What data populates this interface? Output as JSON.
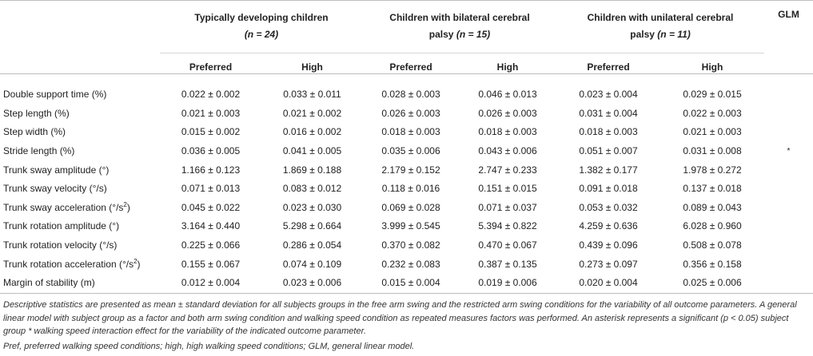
{
  "groups": {
    "td": {
      "name": "Typically developing children",
      "n": "(n = 24)"
    },
    "bcp": {
      "name_line1": "Children with bilateral cerebral",
      "name_line2": "palsy",
      "n": "(n = 15)"
    },
    "ucp": {
      "name_line1": "Children with unilateral cerebral",
      "name_line2": "palsy",
      "n": "(n = 11)"
    },
    "glm": "GLM"
  },
  "subheaders": {
    "preferred": "Preferred",
    "high": "High"
  },
  "rows": [
    {
      "label": "Double support time (%)",
      "unit_sup": "",
      "values": [
        "0.022 ± 0.002",
        "0.033 ± 0.011",
        "0.028 ± 0.003",
        "0.046 ± 0.013",
        "0.023 ± 0.004",
        "0.029 ± 0.015"
      ],
      "glm": ""
    },
    {
      "label": "Step length (%)",
      "unit_sup": "",
      "values": [
        "0.021 ± 0.003",
        "0.021 ± 0.002",
        "0.026 ± 0.003",
        "0.026 ± 0.003",
        "0.031 ± 0.004",
        "0.022 ± 0.003"
      ],
      "glm": ""
    },
    {
      "label": "Step width (%)",
      "unit_sup": "",
      "values": [
        "0.015 ± 0.002",
        "0.016 ± 0.002",
        "0.018 ± 0.003",
        "0.018 ± 0.003",
        "0.018 ± 0.003",
        "0.021 ± 0.003"
      ],
      "glm": ""
    },
    {
      "label": "Stride length (%)",
      "unit_sup": "",
      "values": [
        "0.036 ± 0.005",
        "0.041 ± 0.005",
        "0.035 ± 0.006",
        "0.043 ± 0.006",
        "0.051 ± 0.007",
        "0.031 ± 0.008"
      ],
      "glm": "*"
    },
    {
      "label": "Trunk sway amplitude (°)",
      "unit_sup": "",
      "values": [
        "1.166 ± 0.123",
        "1.869 ± 0.188",
        "2.179 ± 0.152",
        "2.747 ± 0.233",
        "1.382 ± 0.177",
        "1.978 ± 0.272"
      ],
      "glm": ""
    },
    {
      "label": "Trunk sway velocity (°/s)",
      "unit_sup": "",
      "values": [
        "0.071 ± 0.013",
        "0.083 ± 0.012",
        "0.118 ± 0.016",
        "0.151 ± 0.015",
        "0.091 ± 0.018",
        "0.137 ± 0.018"
      ],
      "glm": ""
    },
    {
      "label": "Trunk sway acceleration (°/s",
      "unit_sup": "2",
      "label_end": ")",
      "values": [
        "0.045 ± 0.022",
        "0.023 ± 0.030",
        "0.069 ± 0.028",
        "0.071 ± 0.037",
        "0.053 ± 0.032",
        "0.089 ± 0.043"
      ],
      "glm": ""
    },
    {
      "label": "Trunk rotation amplitude (°)",
      "unit_sup": "",
      "values": [
        "3.164 ± 0.440",
        "5.298 ± 0.664",
        "3.999 ± 0.545",
        "5.394 ± 0.822",
        "4.259 ± 0.636",
        "6.028 ± 0.960"
      ],
      "glm": ""
    },
    {
      "label": "Trunk rotation velocity (°/s)",
      "unit_sup": "",
      "values": [
        "0.225 ± 0.066",
        "0.286 ± 0.054",
        "0.370 ± 0.082",
        "0.470 ± 0.067",
        "0.439 ± 0.096",
        "0.508 ± 0.078"
      ],
      "glm": ""
    },
    {
      "label": "Trunk rotation acceleration (°/s",
      "unit_sup": "2",
      "label_end": ")",
      "values": [
        "0.155 ± 0.067",
        "0.074 ± 0.109",
        "0.232 ± 0.083",
        "0.387 ± 0.135",
        "0.273 ± 0.097",
        "0.356 ± 0.158"
      ],
      "glm": ""
    },
    {
      "label": "Margin of stability (m)",
      "unit_sup": "",
      "values": [
        "0.012 ± 0.004",
        "0.023 ± 0.006",
        "0.015 ± 0.004",
        "0.019 ± 0.006",
        "0.020 ± 0.004",
        "0.025 ± 0.006"
      ],
      "glm": ""
    }
  ],
  "footnotes": {
    "descriptive": "Descriptive statistics are presented as mean ± standard deviation for all subjects groups in the free arm swing and the restricted arm swing conditions for the variability of all outcome parameters. A general linear model with subject group as a factor and both arm swing condition and walking speed condition as repeated measures factors was performed. An asterisk represents a significant (p < 0.05) subject group * walking speed interaction effect for the variability of the indicated outcome parameter.",
    "abbreviations": "Pref, preferred walking speed conditions; high, high walking speed conditions; GLM, general linear model."
  }
}
